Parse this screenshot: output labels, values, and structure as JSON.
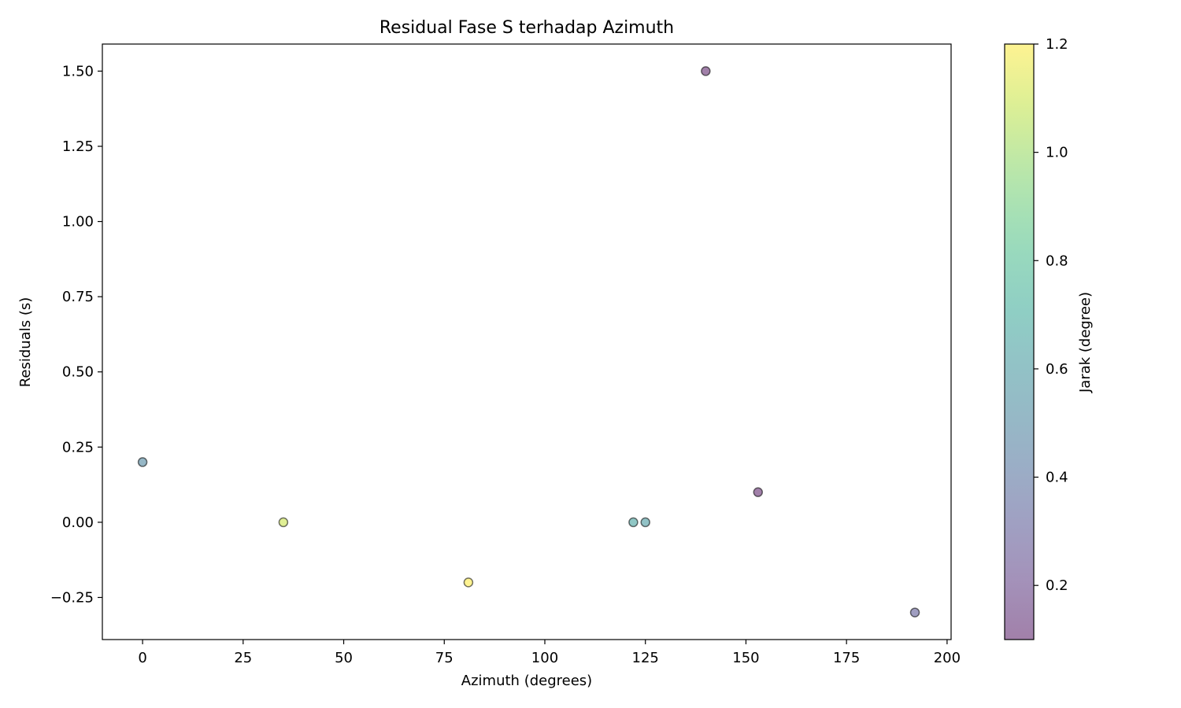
{
  "chart_data": {
    "type": "scatter",
    "title": "Residual Fase S terhadap Azimuth",
    "xlabel": "Azimuth (degrees)",
    "ylabel": "Residuals (s)",
    "xlim": [
      -10,
      201
    ],
    "ylim": [
      -0.39,
      1.59
    ],
    "xticks": [
      0,
      25,
      50,
      75,
      100,
      125,
      150,
      175,
      200
    ],
    "xtick_labels": [
      "0",
      "25",
      "50",
      "75",
      "100",
      "125",
      "150",
      "175",
      "200"
    ],
    "yticks": [
      -0.25,
      0.0,
      0.25,
      0.5,
      0.75,
      1.0,
      1.25,
      1.5
    ],
    "ytick_labels": [
      "−0.25",
      "0.00",
      "0.25",
      "0.50",
      "0.75",
      "1.00",
      "1.25",
      "1.50"
    ],
    "grid": false,
    "colorbar": {
      "label": "Jarak (degree)",
      "colormap": "viridis",
      "range": [
        0.1,
        1.2
      ],
      "ticks": [
        0.2,
        0.4,
        0.6,
        0.8,
        1.0,
        1.2
      ],
      "tick_labels": [
        "0.2",
        "0.4",
        "0.6",
        "0.8",
        "1.0",
        "1.2"
      ],
      "alpha": 0.5
    },
    "points": [
      {
        "x": 0,
        "y": 0.2,
        "c": 0.5
      },
      {
        "x": 35,
        "y": 0.0,
        "c": 1.1
      },
      {
        "x": 81,
        "y": -0.2,
        "c": 1.2
      },
      {
        "x": 122,
        "y": 0.0,
        "c": 0.65
      },
      {
        "x": 125,
        "y": 0.0,
        "c": 0.6
      },
      {
        "x": 140,
        "y": 1.5,
        "c": 0.1
      },
      {
        "x": 153,
        "y": 0.1,
        "c": 0.1
      },
      {
        "x": 192,
        "y": -0.3,
        "c": 0.3
      }
    ],
    "marker_edge_color": "#000000",
    "marker_alpha": 0.5
  }
}
